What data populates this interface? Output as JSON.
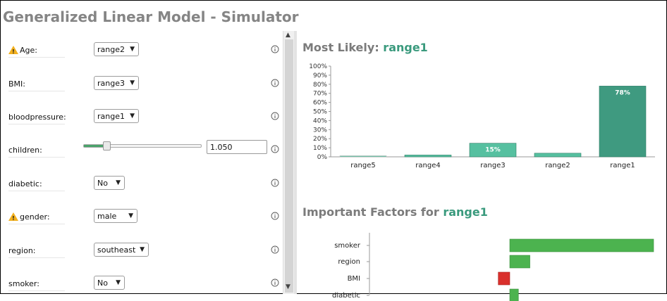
{
  "window": {
    "title": "Generalized Linear Model - Simulator"
  },
  "form": [
    {
      "label": "Age",
      "warning": true,
      "type": "select",
      "value": "range2"
    },
    {
      "label": "BMI",
      "warning": false,
      "type": "select",
      "value": "range3"
    },
    {
      "label": "bloodpressure",
      "warning": false,
      "type": "select",
      "value": "range1"
    },
    {
      "label": "children",
      "warning": false,
      "type": "slider",
      "value": "1.050",
      "slider_fraction": 0.2
    },
    {
      "label": "diabetic",
      "warning": false,
      "type": "select",
      "value": "No"
    },
    {
      "label": "gender",
      "warning": true,
      "type": "select",
      "value": "male"
    },
    {
      "label": "region",
      "warning": false,
      "type": "select",
      "value": "southeast"
    },
    {
      "label": "smoker",
      "warning": false,
      "type": "select",
      "value": "No"
    }
  ],
  "icons": {
    "info": "info-icon",
    "warning": "warning-icon",
    "dropdown": "chevron-down-icon"
  },
  "most_likely": {
    "heading": "Most Likely:",
    "value": "range1"
  },
  "important_factors": {
    "heading": "Important Factors for",
    "value": "range1"
  },
  "colors": {
    "accent": "#3a9a7d",
    "bar_dark": "#3f9a80",
    "bar_light": "#56c0a0",
    "factor_green": "#4cb34f",
    "factor_red": "#d9302c"
  },
  "chart_data": [
    {
      "type": "bar",
      "categories": [
        "range5",
        "range4",
        "range3",
        "range2",
        "range1"
      ],
      "values": [
        0.5,
        2,
        15,
        4,
        78
      ],
      "data_labels": [
        "",
        "",
        "15%",
        "",
        "78%"
      ],
      "yticks": [
        "0%",
        "10%",
        "20%",
        "30%",
        "40%",
        "50%",
        "60%",
        "70%",
        "80%",
        "90%",
        "100%"
      ],
      "ylim": [
        0,
        100
      ],
      "title": "",
      "xlabel": "",
      "ylabel": ""
    },
    {
      "type": "bar",
      "orientation": "horizontal",
      "categories": [
        "smoker",
        "region",
        "BMI",
        "diabetic"
      ],
      "values": [
        1.0,
        0.14,
        -0.08,
        0.06
      ],
      "title": "",
      "xlabel": "",
      "ylabel": ""
    }
  ]
}
